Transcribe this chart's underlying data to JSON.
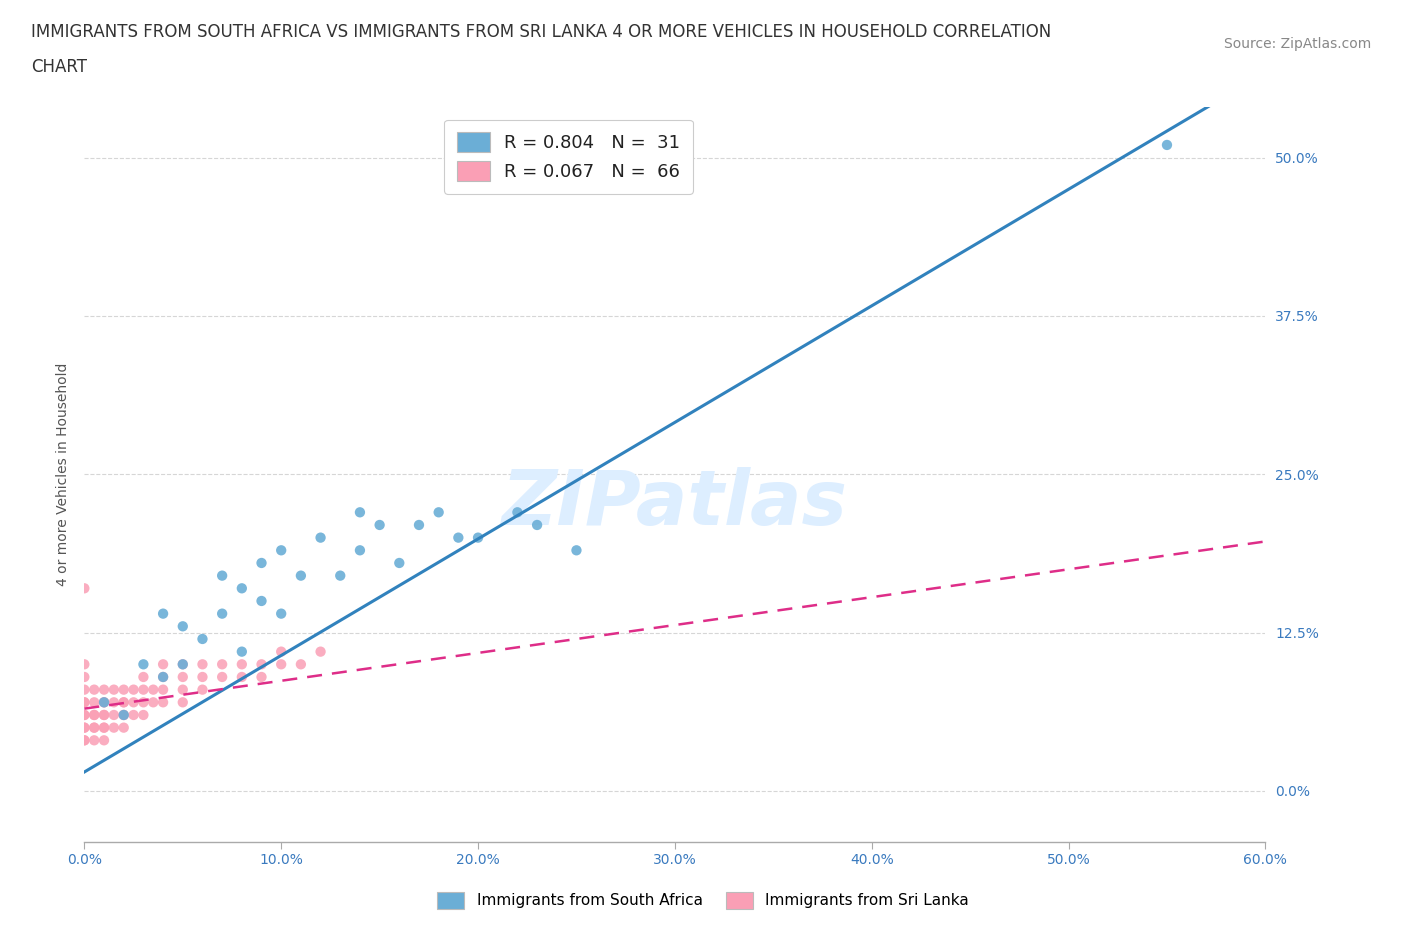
{
  "title_line1": "IMMIGRANTS FROM SOUTH AFRICA VS IMMIGRANTS FROM SRI LANKA 4 OR MORE VEHICLES IN HOUSEHOLD CORRELATION",
  "title_line2": "CHART",
  "source_text": "Source: ZipAtlas.com",
  "xlabel_ticks": [
    "0.0%",
    "10.0%",
    "20.0%",
    "30.0%",
    "40.0%",
    "50.0%",
    "60.0%"
  ],
  "ylabel_ticks": [
    "0.0%",
    "12.5%",
    "25.0%",
    "37.5%",
    "50.0%"
  ],
  "xlim": [
    0.0,
    0.6
  ],
  "ylim": [
    -0.04,
    0.54
  ],
  "ylabel": "4 or more Vehicles in Household",
  "legend_r1": "R = 0.804",
  "legend_n1": "N =  31",
  "legend_r2": "R = 0.067",
  "legend_n2": "N =  66",
  "color_blue": "#6baed6",
  "color_pink": "#fa9fb5",
  "trendline_blue_color": "#3182bd",
  "trendline_pink_color": "#de2d88",
  "watermark_color": "#ddeeff",
  "grid_color": "#cccccc",
  "background_color": "#ffffff",
  "title_fontsize": 12,
  "axis_label_fontsize": 10,
  "tick_fontsize": 10,
  "legend_fontsize": 13,
  "source_fontsize": 10,
  "watermark_text": "ZIPatlas",
  "watermark_fontsize": 55,
  "blue_scatter_x": [
    0.01,
    0.02,
    0.03,
    0.04,
    0.04,
    0.05,
    0.05,
    0.06,
    0.07,
    0.07,
    0.08,
    0.08,
    0.09,
    0.09,
    0.1,
    0.1,
    0.11,
    0.12,
    0.13,
    0.14,
    0.14,
    0.15,
    0.16,
    0.17,
    0.18,
    0.19,
    0.2,
    0.22,
    0.23,
    0.25,
    0.55
  ],
  "blue_scatter_y": [
    0.07,
    0.06,
    0.1,
    0.09,
    0.14,
    0.1,
    0.13,
    0.12,
    0.14,
    0.17,
    0.11,
    0.16,
    0.15,
    0.18,
    0.14,
    0.19,
    0.17,
    0.2,
    0.17,
    0.19,
    0.22,
    0.21,
    0.18,
    0.21,
    0.22,
    0.2,
    0.2,
    0.22,
    0.21,
    0.19,
    0.51
  ],
  "pink_scatter_x": [
    0.0,
    0.0,
    0.0,
    0.0,
    0.0,
    0.0,
    0.0,
    0.0,
    0.0,
    0.0,
    0.0,
    0.005,
    0.005,
    0.005,
    0.005,
    0.005,
    0.005,
    0.005,
    0.01,
    0.01,
    0.01,
    0.01,
    0.01,
    0.01,
    0.01,
    0.01,
    0.015,
    0.015,
    0.015,
    0.015,
    0.02,
    0.02,
    0.02,
    0.02,
    0.02,
    0.02,
    0.025,
    0.025,
    0.025,
    0.03,
    0.03,
    0.03,
    0.03,
    0.035,
    0.035,
    0.04,
    0.04,
    0.04,
    0.04,
    0.05,
    0.05,
    0.05,
    0.05,
    0.06,
    0.06,
    0.06,
    0.07,
    0.07,
    0.08,
    0.08,
    0.09,
    0.09,
    0.1,
    0.1,
    0.11,
    0.12
  ],
  "pink_scatter_y": [
    0.04,
    0.05,
    0.06,
    0.07,
    0.08,
    0.09,
    0.1,
    0.05,
    0.04,
    0.06,
    0.07,
    0.04,
    0.05,
    0.06,
    0.07,
    0.08,
    0.05,
    0.06,
    0.04,
    0.05,
    0.06,
    0.07,
    0.08,
    0.06,
    0.07,
    0.05,
    0.05,
    0.06,
    0.07,
    0.08,
    0.05,
    0.06,
    0.07,
    0.08,
    0.06,
    0.07,
    0.06,
    0.07,
    0.08,
    0.06,
    0.07,
    0.08,
    0.09,
    0.07,
    0.08,
    0.07,
    0.08,
    0.09,
    0.1,
    0.08,
    0.09,
    0.1,
    0.07,
    0.08,
    0.09,
    0.1,
    0.09,
    0.1,
    0.09,
    0.1,
    0.09,
    0.1,
    0.1,
    0.11,
    0.1,
    0.11
  ],
  "pink_outlier_x": [
    0.0
  ],
  "pink_outlier_y": [
    0.16
  ]
}
